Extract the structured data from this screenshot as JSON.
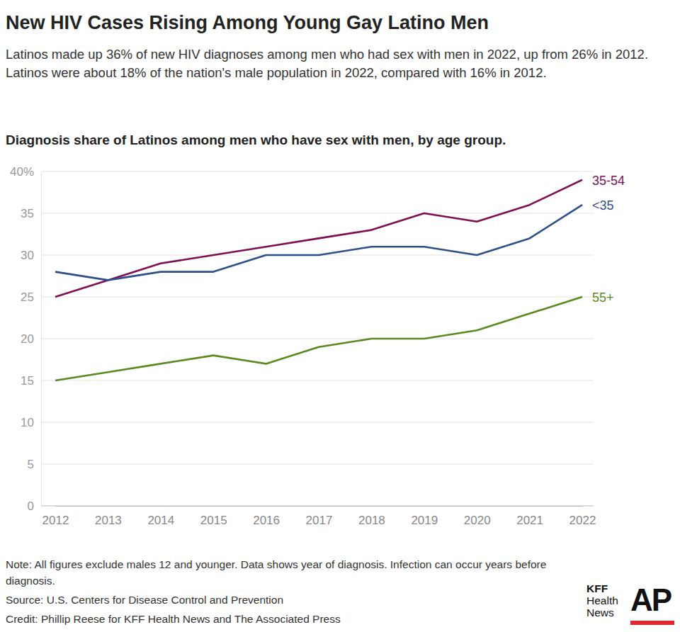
{
  "chart_data": {
    "type": "line",
    "title": "New HIV Cases Rising Among Young Gay Latino Men",
    "subtitle": "Latinos made up 36% of new HIV diagnoses among men who had sex with men in 2022, up from 26% in 2012. Latinos were about 18% of the nation's male population in 2022, compared with 16% in 2012.",
    "chart_title": "Diagnosis share of Latinos among men who have sex with men, by age group.",
    "note": "Note: All figures exclude males 12 and younger. Data shows year of diagnosis. Infection can occur years before diagnosis.",
    "source": "Source: U.S. Centers for Disease Control and Prevention",
    "credit": "Credit: Phillip Reese for KFF Health News and The Associated Press",
    "logos": [
      "KFF Health News",
      "AP"
    ],
    "x": [
      2012,
      2013,
      2014,
      2015,
      2016,
      2017,
      2018,
      2019,
      2020,
      2021,
      2022
    ],
    "xlim": [
      2012,
      2022
    ],
    "xticks": [
      2012,
      2013,
      2014,
      2015,
      2016,
      2017,
      2018,
      2019,
      2020,
      2021,
      2022
    ],
    "ylim": [
      0,
      40
    ],
    "yticks": [
      0,
      5,
      10,
      15,
      20,
      25,
      30,
      35,
      {
        "value": 40,
        "label": "40%"
      }
    ],
    "grid": true,
    "series": [
      {
        "name": "35-54",
        "color": "#7d0f52",
        "values": [
          25,
          27,
          29,
          30,
          31,
          32,
          33,
          35,
          34,
          36,
          39
        ]
      },
      {
        "name": "<35",
        "color": "#2f4f88",
        "values": [
          28,
          27,
          28,
          28,
          30,
          30,
          31,
          31,
          30,
          32,
          36
        ]
      },
      {
        "name": "55+",
        "color": "#5a8a1f",
        "values": [
          15,
          16,
          17,
          18,
          17,
          19,
          20,
          20,
          21,
          23,
          25
        ]
      }
    ]
  }
}
